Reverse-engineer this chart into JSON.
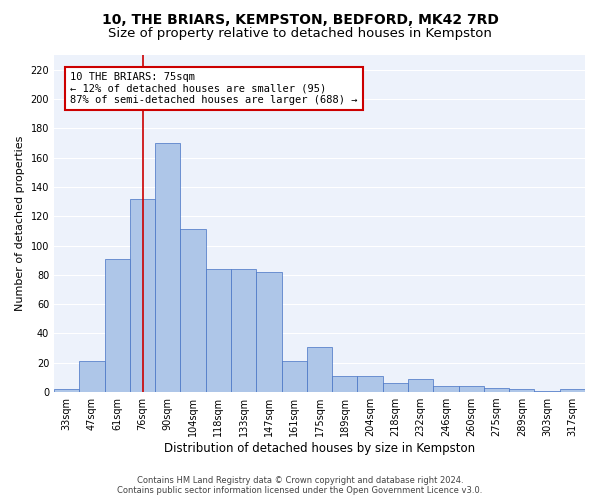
{
  "title1": "10, THE BRIARS, KEMPSTON, BEDFORD, MK42 7RD",
  "title2": "Size of property relative to detached houses in Kempston",
  "xlabel": "Distribution of detached houses by size in Kempston",
  "ylabel": "Number of detached properties",
  "categories": [
    "33sqm",
    "47sqm",
    "61sqm",
    "76sqm",
    "90sqm",
    "104sqm",
    "118sqm",
    "133sqm",
    "147sqm",
    "161sqm",
    "175sqm",
    "189sqm",
    "204sqm",
    "218sqm",
    "232sqm",
    "246sqm",
    "260sqm",
    "275sqm",
    "289sqm",
    "303sqm",
    "317sqm"
  ],
  "values": [
    2,
    21,
    91,
    132,
    170,
    111,
    84,
    84,
    82,
    21,
    31,
    11,
    11,
    6,
    9,
    4,
    4,
    3,
    2,
    1,
    2
  ],
  "bar_color": "#aec6e8",
  "bar_edge_color": "#4472c4",
  "vline_x_index": 3,
  "vline_color": "#cc0000",
  "annotation_line1": "10 THE BRIARS: 75sqm",
  "annotation_line2": "← 12% of detached houses are smaller (95)",
  "annotation_line3": "87% of semi-detached houses are larger (688) →",
  "annotation_box_color": "white",
  "annotation_box_edge_color": "#cc0000",
  "ylim": [
    0,
    230
  ],
  "yticks": [
    0,
    20,
    40,
    60,
    80,
    100,
    120,
    140,
    160,
    180,
    200,
    220
  ],
  "footer1": "Contains HM Land Registry data © Crown copyright and database right 2024.",
  "footer2": "Contains public sector information licensed under the Open Government Licence v3.0.",
  "background_color": "#edf2fb",
  "grid_color": "#ffffff",
  "title1_fontsize": 10,
  "title2_fontsize": 9.5,
  "xlabel_fontsize": 8.5,
  "ylabel_fontsize": 8,
  "tick_fontsize": 7,
  "annotation_fontsize": 7.5,
  "footer_fontsize": 6
}
